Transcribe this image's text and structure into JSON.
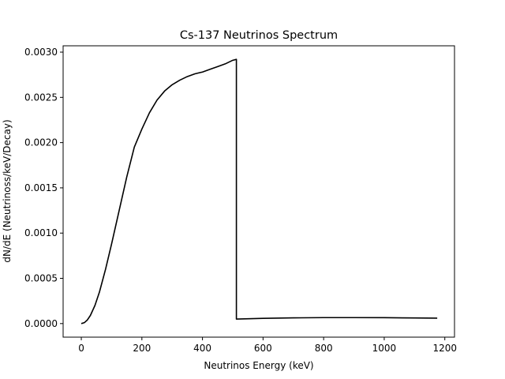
{
  "chart_data": {
    "type": "line",
    "title": "Cs-137 Neutrinos Spectrum",
    "xlabel": "Neutrinos Energy (keV)",
    "ylabel": "dN/dE (Neutrinoss/keV/Decay)",
    "xlim": [
      -60,
      1232
    ],
    "ylim": [
      -0.00015,
      0.00307
    ],
    "xticks": [
      0,
      200,
      400,
      600,
      800,
      1000,
      1200
    ],
    "xtick_labels": [
      "0",
      "200",
      "400",
      "600",
      "800",
      "1000",
      "1200"
    ],
    "yticks": [
      0.0,
      0.0005,
      0.001,
      0.0015,
      0.002,
      0.0025,
      0.003
    ],
    "ytick_labels": [
      "0.0000",
      "0.0005",
      "0.0010",
      "0.0015",
      "0.0020",
      "0.0025",
      "0.0030"
    ],
    "grid": false,
    "legend": "none",
    "line_color": "#000000",
    "series": [
      {
        "x": [
          0,
          10,
          20,
          30,
          45,
          60,
          80,
          100,
          125,
          150,
          175,
          200,
          225,
          250,
          275,
          300,
          325,
          350,
          375,
          400,
          425,
          450,
          475,
          500,
          512,
          512,
          515,
          540,
          600,
          700,
          800,
          900,
          1000,
          1100,
          1175
        ],
        "y": [
          0.0,
          1e-05,
          4e-05,
          9e-05,
          0.0002,
          0.00035,
          0.0006,
          0.00088,
          0.00125,
          0.00162,
          0.00195,
          0.00215,
          0.00233,
          0.00247,
          0.00257,
          0.00264,
          0.00269,
          0.00273,
          0.00276,
          0.00278,
          0.00281,
          0.00284,
          0.00287,
          0.00291,
          0.00292,
          5e-05,
          5e-05,
          5.2e-05,
          5.8e-05,
          6.3e-05,
          6.6e-05,
          6.6e-05,
          6.5e-05,
          6.2e-05,
          6e-05
        ]
      }
    ]
  }
}
